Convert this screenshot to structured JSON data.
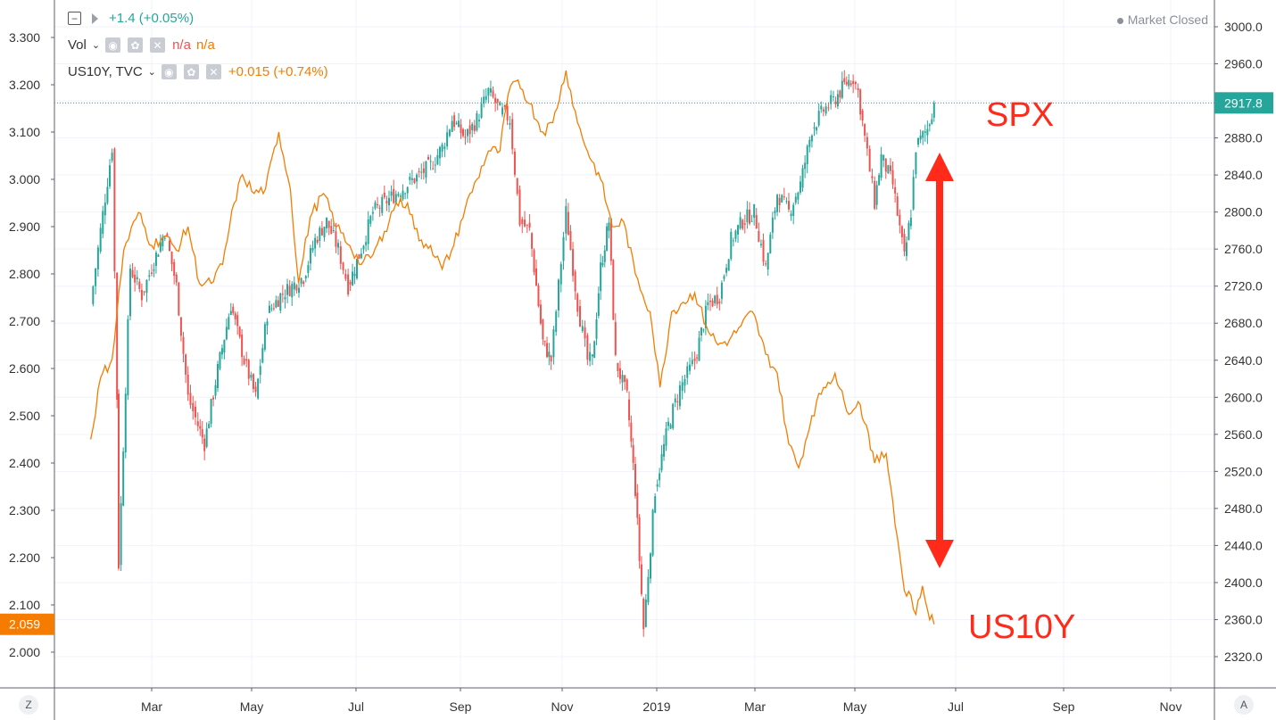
{
  "legend": {
    "spx": {
      "change": "+1.4 (+0.05%)",
      "color": "#26a69a"
    },
    "vol": {
      "label": "Vol",
      "value1": "n/a",
      "value2": "n/a"
    },
    "us10y": {
      "label": "US10Y, TVC",
      "change": "+0.015 (+0.74%)",
      "color": "#f57c00"
    }
  },
  "status": {
    "market": "Market Closed"
  },
  "corners": {
    "left": "Z",
    "right": "A"
  },
  "annotations": {
    "spx": "SPX",
    "us10y": "US10Y",
    "arrow_color": "#ff2a1a"
  },
  "chart_data": {
    "type": "line",
    "x_ticks": [
      "Mar",
      "May",
      "Jul",
      "Sep",
      "Nov",
      "2019",
      "Mar",
      "May",
      "Jul",
      "Sep",
      "Nov"
    ],
    "left_axis": {
      "series": "US10Y",
      "ticks": [
        "3.300",
        "3.200",
        "3.100",
        "3.000",
        "2.900",
        "2.800",
        "2.700",
        "2.600",
        "2.500",
        "2.400",
        "2.300",
        "2.200",
        "2.100",
        "2.000"
      ],
      "ylim": [
        1.93,
        3.37
      ],
      "current_label": "2.059"
    },
    "right_axis": {
      "series": "SPX",
      "ticks": [
        "3000.0",
        "2960.0",
        "2920.0",
        "2880.0",
        "2840.0",
        "2800.0",
        "2760.0",
        "2720.0",
        "2680.0",
        "2640.0",
        "2600.0",
        "2560.0",
        "2520.0",
        "2480.0",
        "2440.0",
        "2400.0",
        "2360.0",
        "2320.0"
      ],
      "ylim": [
        2284,
        3022
      ],
      "current_label": "2917.8"
    },
    "series": [
      {
        "name": "SPX",
        "style": "candlestick",
        "up_color": "#26a69a",
        "down_color": "#ef5350",
        "values": [
          [
            "2018-01-23",
            2700
          ],
          [
            "2018-01-29",
            2780
          ],
          [
            "2018-02-05",
            2870
          ],
          [
            "2018-02-08",
            2600
          ],
          [
            "2018-02-09",
            2420
          ],
          [
            "2018-02-16",
            2740
          ],
          [
            "2018-02-23",
            2710
          ],
          [
            "2018-03-01",
            2740
          ],
          [
            "2018-03-09",
            2780
          ],
          [
            "2018-03-16",
            2720
          ],
          [
            "2018-03-23",
            2600
          ],
          [
            "2018-03-29",
            2570
          ],
          [
            "2018-04-02",
            2550
          ],
          [
            "2018-04-10",
            2630
          ],
          [
            "2018-04-18",
            2700
          ],
          [
            "2018-04-26",
            2640
          ],
          [
            "2018-05-03",
            2600
          ],
          [
            "2018-05-10",
            2690
          ],
          [
            "2018-05-18",
            2710
          ],
          [
            "2018-05-25",
            2720
          ],
          [
            "2018-06-01",
            2730
          ],
          [
            "2018-06-08",
            2770
          ],
          [
            "2018-06-15",
            2790
          ],
          [
            "2018-06-22",
            2760
          ],
          [
            "2018-06-28",
            2720
          ],
          [
            "2018-07-06",
            2760
          ],
          [
            "2018-07-13",
            2800
          ],
          [
            "2018-07-20",
            2810
          ],
          [
            "2018-07-27",
            2820
          ],
          [
            "2018-08-03",
            2830
          ],
          [
            "2018-08-10",
            2840
          ],
          [
            "2018-08-17",
            2850
          ],
          [
            "2018-08-24",
            2870
          ],
          [
            "2018-08-30",
            2900
          ],
          [
            "2018-09-07",
            2880
          ],
          [
            "2018-09-14",
            2900
          ],
          [
            "2018-09-21",
            2930
          ],
          [
            "2018-09-28",
            2910
          ],
          [
            "2018-10-04",
            2900
          ],
          [
            "2018-10-10",
            2790
          ],
          [
            "2018-10-16",
            2780
          ],
          [
            "2018-10-24",
            2660
          ],
          [
            "2018-10-29",
            2640
          ],
          [
            "2018-11-07",
            2800
          ],
          [
            "2018-11-14",
            2700
          ],
          [
            "2018-11-20",
            2640
          ],
          [
            "2018-11-23",
            2640
          ],
          [
            "2018-11-28",
            2740
          ],
          [
            "2018-12-03",
            2790
          ],
          [
            "2018-12-07",
            2640
          ],
          [
            "2018-12-14",
            2600
          ],
          [
            "2018-12-19",
            2500
          ],
          [
            "2018-12-24",
            2350
          ],
          [
            "2018-12-31",
            2500
          ],
          [
            "2019-01-08",
            2570
          ],
          [
            "2019-01-15",
            2610
          ],
          [
            "2019-01-24",
            2640
          ],
          [
            "2019-02-01",
            2700
          ],
          [
            "2019-02-08",
            2710
          ],
          [
            "2019-02-15",
            2770
          ],
          [
            "2019-02-22",
            2790
          ],
          [
            "2019-03-01",
            2800
          ],
          [
            "2019-03-08",
            2740
          ],
          [
            "2019-03-15",
            2820
          ],
          [
            "2019-03-22",
            2800
          ],
          [
            "2019-03-29",
            2830
          ],
          [
            "2019-04-05",
            2890
          ],
          [
            "2019-04-12",
            2910
          ],
          [
            "2019-04-18",
            2920
          ],
          [
            "2019-04-26",
            2940
          ],
          [
            "2019-04-30",
            2945
          ],
          [
            "2019-05-03",
            2930
          ],
          [
            "2019-05-07",
            2880
          ],
          [
            "2019-05-13",
            2810
          ],
          [
            "2019-05-17",
            2860
          ],
          [
            "2019-05-24",
            2830
          ],
          [
            "2019-05-31",
            2750
          ],
          [
            "2019-06-04",
            2800
          ],
          [
            "2019-06-07",
            2870
          ],
          [
            "2019-06-14",
            2890
          ],
          [
            "2019-06-18",
            2917.8
          ]
        ]
      },
      {
        "name": "US10Y",
        "style": "line",
        "color": "#f57c00",
        "values": [
          [
            "2018-01-23",
            2.45
          ],
          [
            "2018-01-29",
            2.58
          ],
          [
            "2018-02-05",
            2.62
          ],
          [
            "2018-02-12",
            2.85
          ],
          [
            "2018-02-21",
            2.93
          ],
          [
            "2018-03-01",
            2.86
          ],
          [
            "2018-03-09",
            2.88
          ],
          [
            "2018-03-16",
            2.85
          ],
          [
            "2018-03-23",
            2.9
          ],
          [
            "2018-03-30",
            2.78
          ],
          [
            "2018-04-06",
            2.78
          ],
          [
            "2018-04-13",
            2.82
          ],
          [
            "2018-04-20",
            2.95
          ],
          [
            "2018-04-25",
            3.01
          ],
          [
            "2018-05-02",
            2.97
          ],
          [
            "2018-05-09",
            2.98
          ],
          [
            "2018-05-17",
            3.1
          ],
          [
            "2018-05-24",
            2.98
          ],
          [
            "2018-05-29",
            2.78
          ],
          [
            "2018-06-05",
            2.92
          ],
          [
            "2018-06-13",
            2.97
          ],
          [
            "2018-06-21",
            2.9
          ],
          [
            "2018-06-29",
            2.86
          ],
          [
            "2018-07-06",
            2.82
          ],
          [
            "2018-07-13",
            2.84
          ],
          [
            "2018-07-20",
            2.89
          ],
          [
            "2018-07-27",
            2.95
          ],
          [
            "2018-08-03",
            2.95
          ],
          [
            "2018-08-10",
            2.87
          ],
          [
            "2018-08-17",
            2.86
          ],
          [
            "2018-08-24",
            2.81
          ],
          [
            "2018-08-31",
            2.86
          ],
          [
            "2018-09-07",
            2.94
          ],
          [
            "2018-09-14",
            3.0
          ],
          [
            "2018-09-21",
            3.06
          ],
          [
            "2018-09-28",
            3.06
          ],
          [
            "2018-10-03",
            3.18
          ],
          [
            "2018-10-09",
            3.21
          ],
          [
            "2018-10-16",
            3.16
          ],
          [
            "2018-10-24",
            3.1
          ],
          [
            "2018-10-30",
            3.12
          ],
          [
            "2018-11-07",
            3.23
          ],
          [
            "2018-11-14",
            3.12
          ],
          [
            "2018-11-20",
            3.06
          ],
          [
            "2018-11-28",
            3.0
          ],
          [
            "2018-12-05",
            2.9
          ],
          [
            "2018-12-12",
            2.91
          ],
          [
            "2018-12-19",
            2.8
          ],
          [
            "2018-12-28",
            2.72
          ],
          [
            "2019-01-03",
            2.56
          ],
          [
            "2019-01-10",
            2.72
          ],
          [
            "2019-01-17",
            2.74
          ],
          [
            "2019-01-24",
            2.76
          ],
          [
            "2019-01-31",
            2.69
          ],
          [
            "2019-02-07",
            2.65
          ],
          [
            "2019-02-14",
            2.66
          ],
          [
            "2019-02-21",
            2.69
          ],
          [
            "2019-02-28",
            2.72
          ],
          [
            "2019-03-08",
            2.63
          ],
          [
            "2019-03-15",
            2.59
          ],
          [
            "2019-03-22",
            2.44
          ],
          [
            "2019-03-28",
            2.39
          ],
          [
            "2019-04-05",
            2.5
          ],
          [
            "2019-04-12",
            2.56
          ],
          [
            "2019-04-19",
            2.59
          ],
          [
            "2019-04-26",
            2.51
          ],
          [
            "2019-05-03",
            2.53
          ],
          [
            "2019-05-08",
            2.48
          ],
          [
            "2019-05-13",
            2.4
          ],
          [
            "2019-05-20",
            2.42
          ],
          [
            "2019-05-24",
            2.32
          ],
          [
            "2019-05-31",
            2.13
          ],
          [
            "2019-06-04",
            2.12
          ],
          [
            "2019-06-07",
            2.08
          ],
          [
            "2019-06-11",
            2.14
          ],
          [
            "2019-06-14",
            2.09
          ],
          [
            "2019-06-18",
            2.059
          ]
        ]
      }
    ]
  }
}
